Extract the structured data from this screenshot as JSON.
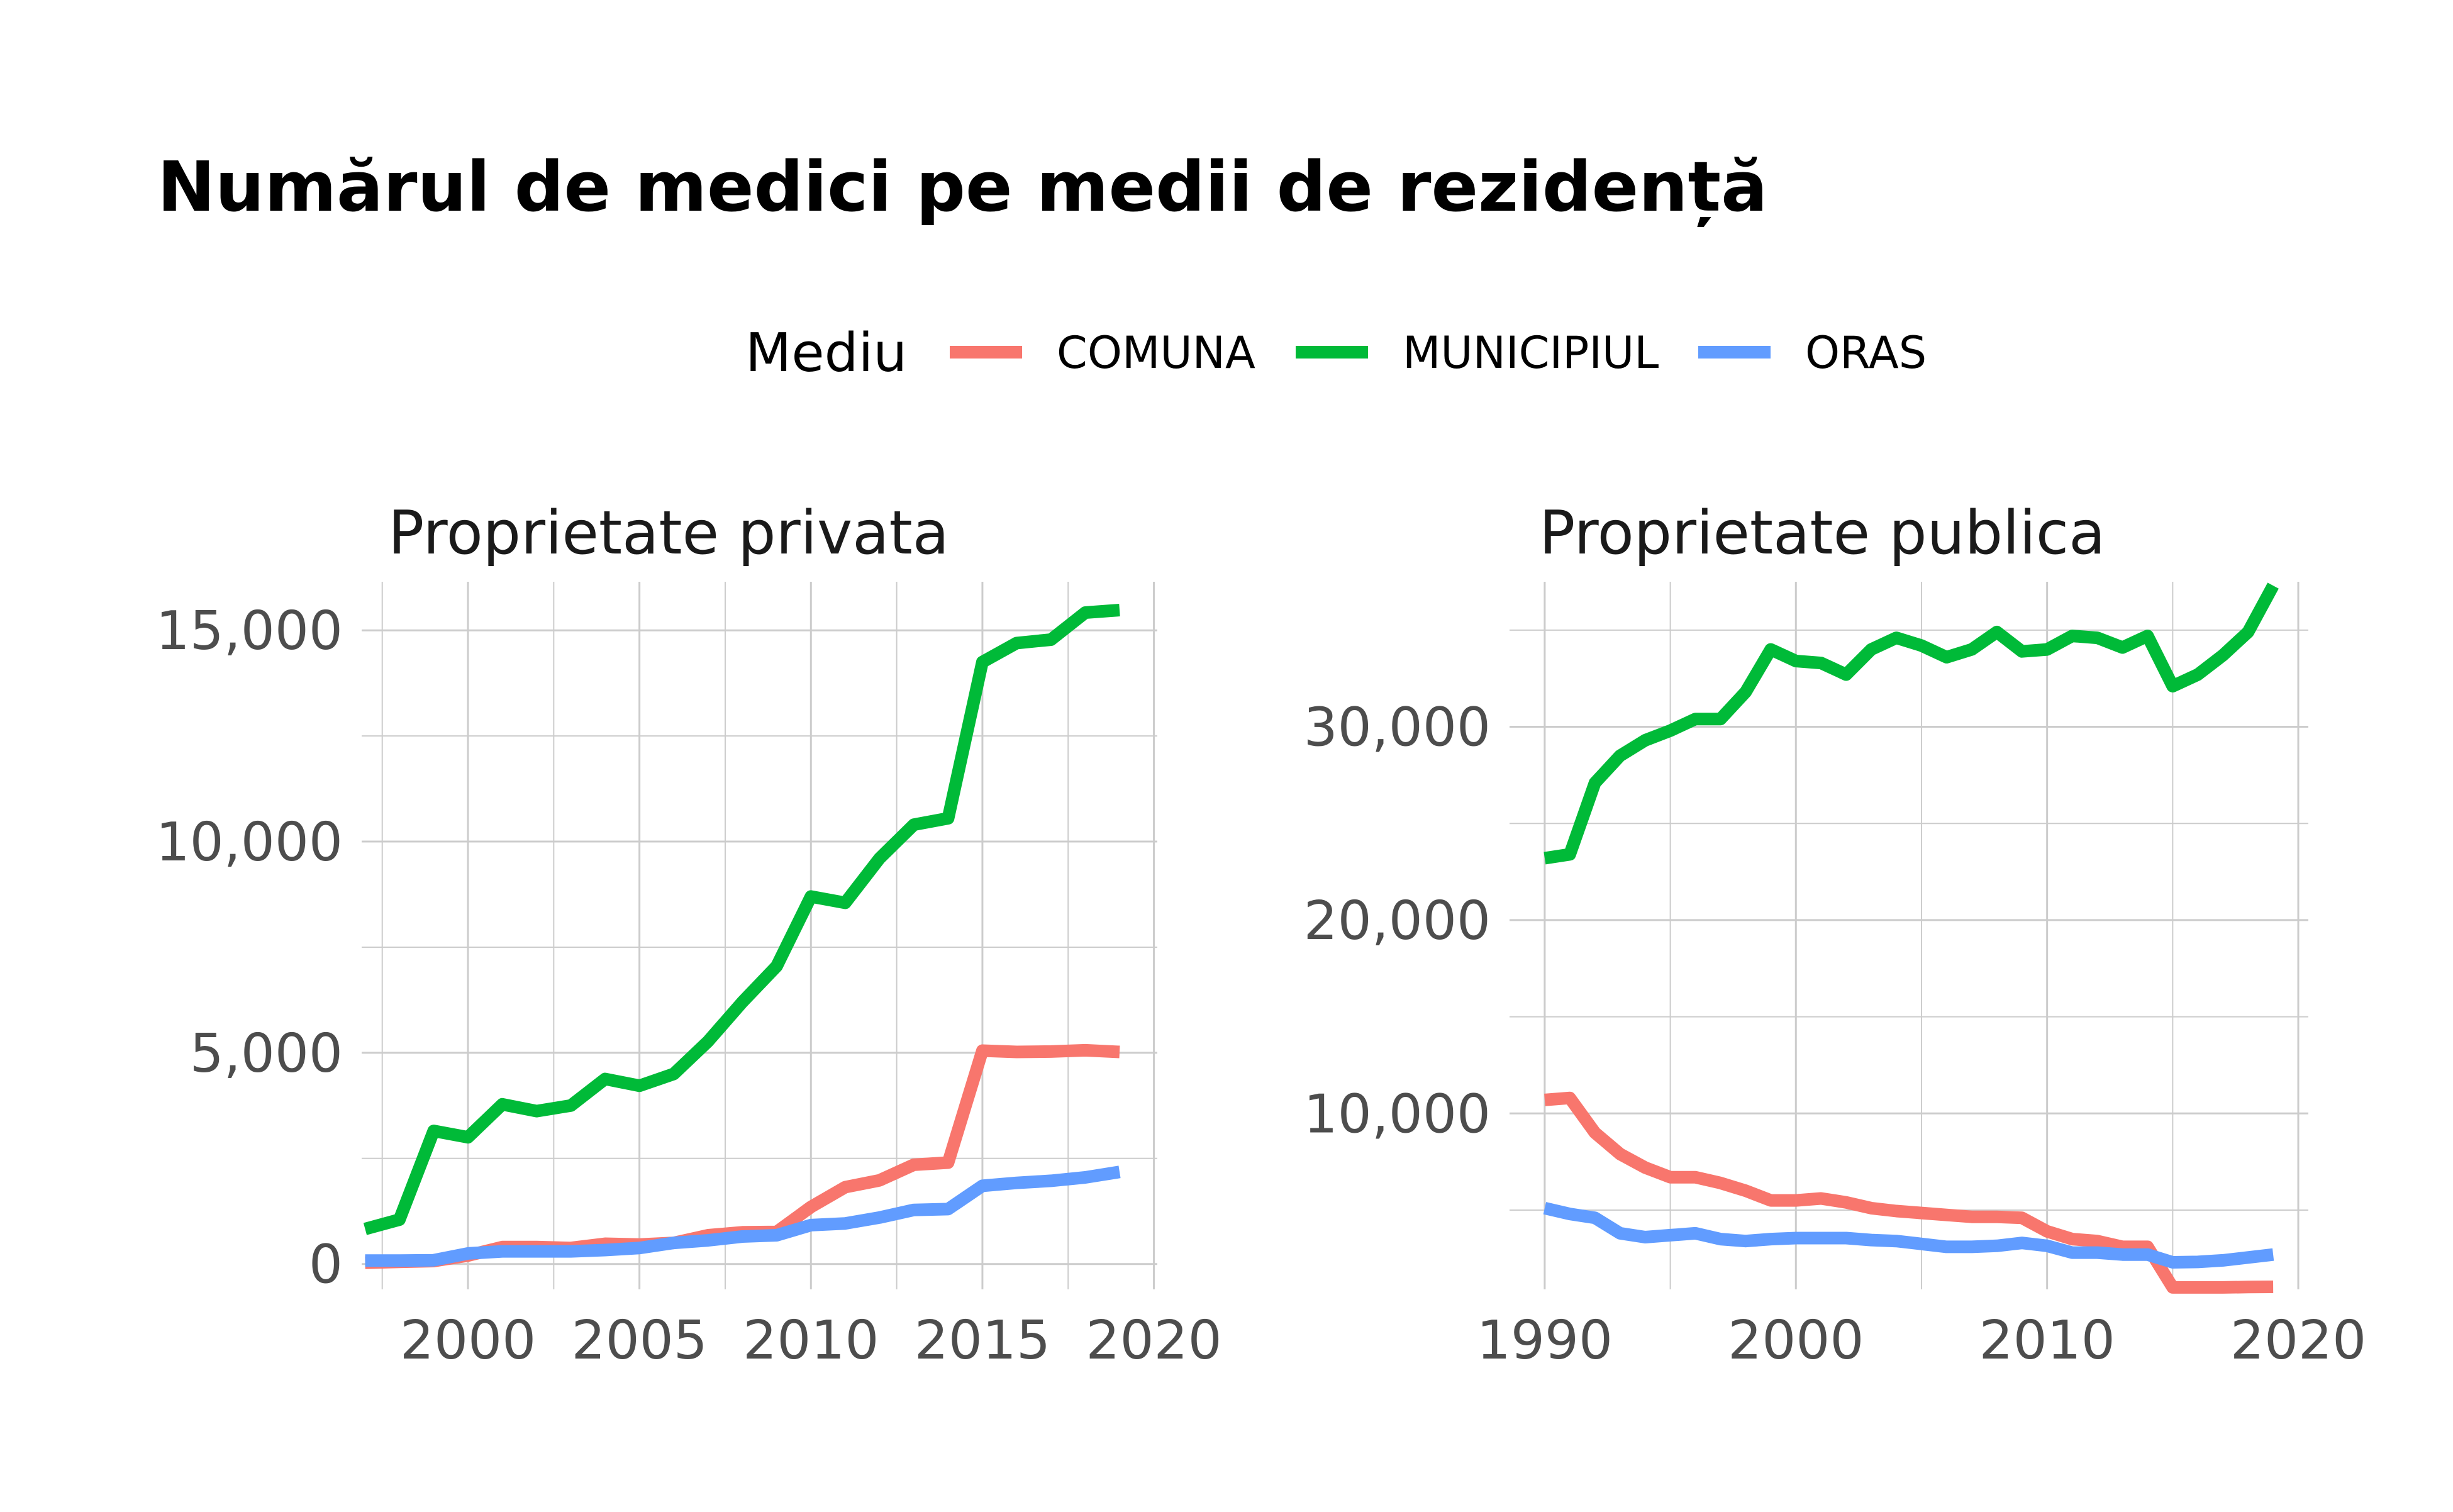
{
  "title": "Numărul de medici pe medii de rezidență",
  "legend": {
    "title": "Mediu",
    "items": [
      {
        "label": "COMUNA",
        "color": "#F8766D"
      },
      {
        "label": "MUNICIPIUL",
        "color": "#00BA38"
      },
      {
        "label": "ORAS",
        "color": "#619CFF"
      }
    ]
  },
  "chart_data": [
    {
      "type": "line",
      "title": "Proprietate privata",
      "xlabel": "",
      "ylabel": "",
      "xlim": [
        1996.9,
        2020.1
      ],
      "ylim": [
        -600,
        16150
      ],
      "x_ticks": [
        2000,
        2005,
        2010,
        2015,
        2020
      ],
      "x_tick_labels": [
        "2000",
        "2005",
        "2010",
        "2015",
        "2020"
      ],
      "x_minor_ticks": [
        1997.5,
        2002.5,
        2007.5,
        2012.5,
        2017.5
      ],
      "y_ticks": [
        0,
        5000,
        10000,
        15000
      ],
      "y_tick_labels": [
        "0",
        "5,000",
        "10,000",
        "15,000"
      ],
      "y_minor_ticks": [
        2500,
        7500,
        12500
      ],
      "grid": true,
      "x": [
        1997,
        1998,
        1999,
        2000,
        2001,
        2002,
        2003,
        2004,
        2005,
        2006,
        2007,
        2008,
        2009,
        2010,
        2011,
        2012,
        2013,
        2014,
        2015,
        2016,
        2017,
        2018,
        2019
      ],
      "series": [
        {
          "name": "COMUNA",
          "color": "#F8766D",
          "values": [
            30,
            50,
            70,
            200,
            400,
            400,
            380,
            480,
            460,
            500,
            680,
            750,
            760,
            1350,
            1820,
            1980,
            2350,
            2400,
            5050,
            5020,
            5030,
            5060,
            5020
          ]
        },
        {
          "name": "MUNICIPIUL",
          "color": "#00BA38",
          "values": [
            830,
            1050,
            3150,
            3000,
            3780,
            3620,
            3750,
            4380,
            4220,
            4500,
            5270,
            6200,
            7050,
            8700,
            8550,
            9600,
            10400,
            10550,
            14250,
            14700,
            14780,
            15420,
            15480
          ]
        },
        {
          "name": "ORAS",
          "color": "#619CFF",
          "values": [
            80,
            80,
            90,
            250,
            300,
            300,
            300,
            330,
            380,
            500,
            560,
            650,
            680,
            920,
            960,
            1100,
            1280,
            1300,
            1850,
            1920,
            1970,
            2050,
            2180
          ]
        }
      ]
    },
    {
      "type": "line",
      "title": "Proprietate publica",
      "xlabel": "",
      "ylabel": "",
      "xlim": [
        1988.6,
        2020.4
      ],
      "ylim": [
        900,
        37500
      ],
      "x_ticks": [
        1990,
        2000,
        2010,
        2020
      ],
      "x_tick_labels": [
        "1990",
        "2000",
        "2010",
        "2020"
      ],
      "x_minor_ticks": [
        1995,
        2005,
        2015
      ],
      "y_ticks": [
        10000,
        20000,
        30000
      ],
      "y_tick_labels": [
        "10,000",
        "20,000",
        "30,000"
      ],
      "y_minor_ticks": [
        5000,
        15000,
        25000,
        35000
      ],
      "grid": true,
      "x": [
        1990,
        1991,
        1992,
        1993,
        1994,
        1995,
        1996,
        1997,
        1998,
        1999,
        2000,
        2001,
        2002,
        2003,
        2004,
        2005,
        2006,
        2007,
        2008,
        2009,
        2010,
        2011,
        2012,
        2013,
        2014,
        2015,
        2016,
        2017,
        2018,
        2019
      ],
      "series": [
        {
          "name": "COMUNA",
          "color": "#F8766D",
          "values": [
            10700,
            10800,
            9000,
            7900,
            7200,
            6700,
            6700,
            6400,
            6000,
            5500,
            5500,
            5600,
            5400,
            5100,
            4950,
            4850,
            4750,
            4650,
            4650,
            4600,
            3900,
            3500,
            3400,
            3100,
            3100,
            1000,
            1000,
            1000,
            1020,
            1030
          ]
        },
        {
          "name": "MUNICIPIUL",
          "color": "#00BA38",
          "values": [
            23200,
            23400,
            27100,
            28500,
            29300,
            29800,
            30400,
            30400,
            31800,
            34000,
            33400,
            33300,
            32700,
            34000,
            34600,
            34200,
            33600,
            34000,
            34900,
            33900,
            34000,
            34700,
            34600,
            34100,
            34700,
            32100,
            32700,
            33700,
            34900,
            37300
          ]
        },
        {
          "name": "ORAS",
          "color": "#619CFF",
          "values": [
            5100,
            4800,
            4600,
            3800,
            3600,
            3700,
            3800,
            3500,
            3400,
            3500,
            3550,
            3550,
            3550,
            3450,
            3400,
            3250,
            3100,
            3100,
            3150,
            3300,
            3150,
            2800,
            2800,
            2700,
            2700,
            2300,
            2320,
            2400,
            2550,
            2700
          ]
        }
      ]
    }
  ]
}
